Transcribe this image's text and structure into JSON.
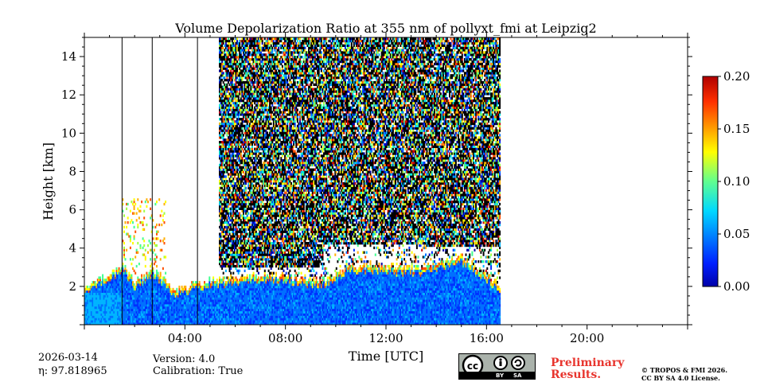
{
  "chart_data": {
    "type": "heatmap",
    "title": "Volume Depolarization Ratio at 355 nm of pollyxt_fmi at Leipzig2",
    "xlabel": "Time [UTC]",
    "ylabel": "Height [km]",
    "xlim_hours": [
      0,
      24
    ],
    "ylim_km": [
      0,
      15
    ],
    "x_ticks": [
      {
        "hour": 4,
        "label": "04:00"
      },
      {
        "hour": 8,
        "label": "08:00"
      },
      {
        "hour": 12,
        "label": "12:00"
      },
      {
        "hour": 16,
        "label": "16:00"
      },
      {
        "hour": 20,
        "label": "20:00"
      }
    ],
    "y_ticks": [
      {
        "km": 2,
        "label": "2"
      },
      {
        "km": 4,
        "label": "4"
      },
      {
        "km": 6,
        "label": "6"
      },
      {
        "km": 8,
        "label": "8"
      },
      {
        "km": 10,
        "label": "10"
      },
      {
        "km": 12,
        "label": "12"
      },
      {
        "km": 14,
        "label": "14"
      }
    ],
    "colorbar": {
      "min": 0.0,
      "max": 0.2,
      "colormap": "jet",
      "ticks": [
        {
          "value": 0.0,
          "label": "0.00"
        },
        {
          "value": 0.05,
          "label": "0.05"
        },
        {
          "value": 0.1,
          "label": "0.10"
        },
        {
          "value": 0.15,
          "label": "0.15"
        },
        {
          "value": 0.2,
          "label": "0.20"
        }
      ]
    },
    "data_end_hour": 16.55,
    "noise_start_hour": 5.3,
    "missing_profile_hours": [
      1.5,
      2.7,
      4.5
    ],
    "boundary_layer_top_km": [
      [
        0.0,
        1.6
      ],
      [
        1.5,
        2.8
      ],
      [
        2.0,
        1.9
      ],
      [
        2.7,
        2.6
      ],
      [
        3.5,
        1.5
      ],
      [
        5.0,
        2.0
      ],
      [
        7.0,
        2.3
      ],
      [
        9.5,
        2.0
      ],
      [
        10.5,
        2.8
      ],
      [
        12.0,
        2.7
      ],
      [
        13.5,
        2.7
      ],
      [
        15.0,
        3.2
      ],
      [
        16.5,
        1.8
      ]
    ]
  },
  "footer": {
    "date": "2026-03-14",
    "eta": "η: 97.818965",
    "version": "Version: 4.0",
    "calibration": "Calibration: True",
    "preliminary_line1": "Preliminary",
    "preliminary_line2": "Results.",
    "copyright_line1": "© TROPOS & FMI 2026.",
    "copyright_line2": "CC BY SA 4.0 License.",
    "license_badge": {
      "cc": "cc",
      "by": "BY",
      "sa": "SA"
    }
  }
}
